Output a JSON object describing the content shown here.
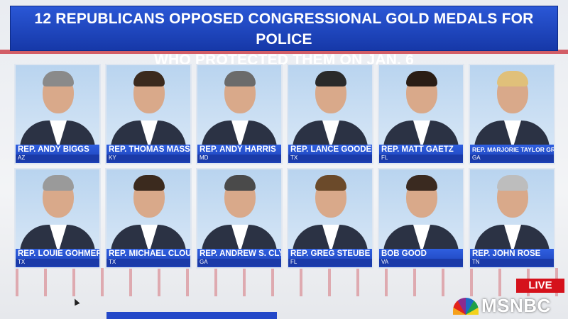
{
  "headline": [
    "12 REPUBLICANS OPPOSED CONGRESSIONAL GOLD MEDALS FOR POLICE",
    "WHO PROTECTED THEM ON JAN. 6"
  ],
  "members": [
    {
      "name": "REP. ANDY BIGGS",
      "state": "AZ"
    },
    {
      "name": "REP. THOMAS MASSIE",
      "state": "KY"
    },
    {
      "name": "REP. ANDY HARRIS",
      "state": "MD"
    },
    {
      "name": "REP. LANCE GOODEN",
      "state": "TX"
    },
    {
      "name": "REP. MATT GAETZ",
      "state": "FL"
    },
    {
      "name": "REP. MARJORIE TAYLOR GREENE",
      "state": "GA"
    },
    {
      "name": "REP. LOUIE GOHMERT",
      "state": "TX"
    },
    {
      "name": "REP. MICHAEL CLOUD",
      "state": "TX"
    },
    {
      "name": "REP. ANDREW S. CLYDE",
      "state": "GA"
    },
    {
      "name": "REP. GREG STEUBE",
      "state": "FL"
    },
    {
      "name": "BOB GOOD",
      "state": "VA"
    },
    {
      "name": "REP. JOHN ROSE",
      "state": "TN"
    }
  ],
  "live_badge": "LIVE",
  "network": "MSNBC",
  "colors": {
    "banner": "#1f48c4",
    "live": "#d5111b"
  }
}
